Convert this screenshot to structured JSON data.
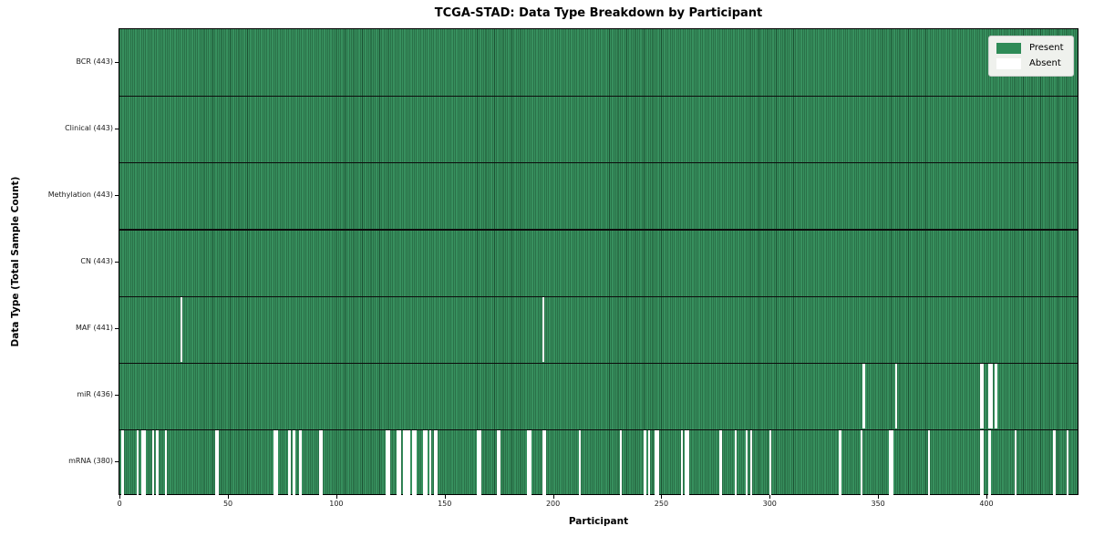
{
  "chart_data": {
    "type": "heatmap",
    "title": "TCGA-STAD: Data Type Breakdown by Participant",
    "xlabel": "Participant",
    "ylabel": "Data Type (Total Sample Count)",
    "participants_total": 443,
    "x_ticks": [
      0,
      50,
      100,
      150,
      200,
      250,
      300,
      350,
      400
    ],
    "grid": false,
    "legend": [
      "Present",
      "Absent"
    ],
    "legend_position": "upper right",
    "colors": {
      "present": "#2e8b57",
      "present_stripe_dark": "#1c5233",
      "absent": "#ffffff",
      "row_divider": "#0c0c0c",
      "legend_bg": "#eff1ed"
    },
    "rows": [
      {
        "label": "BCR (443)",
        "data_type": "BCR",
        "present_count": 443,
        "absent": []
      },
      {
        "label": "Clinical (443)",
        "data_type": "Clinical",
        "present_count": 443,
        "absent": []
      },
      {
        "label": "Methylation (443)",
        "data_type": "Methylation",
        "present_count": 443,
        "absent": []
      },
      {
        "label": "CN (443)",
        "data_type": "CN",
        "present_count": 443,
        "absent": []
      },
      {
        "label": "MAF (441)",
        "data_type": "MAF",
        "present_count": 441,
        "absent": [
          28,
          195
        ]
      },
      {
        "label": "miR (436)",
        "data_type": "miR",
        "present_count": 436,
        "absent": [
          343,
          358,
          397,
          398,
          401,
          402,
          404
        ]
      },
      {
        "label": "mRNA (380)",
        "data_type": "mRNA",
        "present_count": 380,
        "absent": [
          1,
          8,
          10,
          11,
          15,
          17,
          21,
          44,
          45,
          71,
          72,
          78,
          80,
          83,
          92,
          93,
          123,
          124,
          128,
          129,
          131,
          132,
          133,
          135,
          136,
          140,
          141,
          143,
          145,
          146,
          165,
          166,
          174,
          175,
          188,
          189,
          195,
          196,
          212,
          231,
          242,
          244,
          247,
          248,
          259,
          261,
          262,
          277,
          284,
          289,
          291,
          300,
          332,
          342,
          355,
          356,
          373,
          397,
          398,
          401,
          413,
          431,
          437
        ]
      }
    ]
  }
}
